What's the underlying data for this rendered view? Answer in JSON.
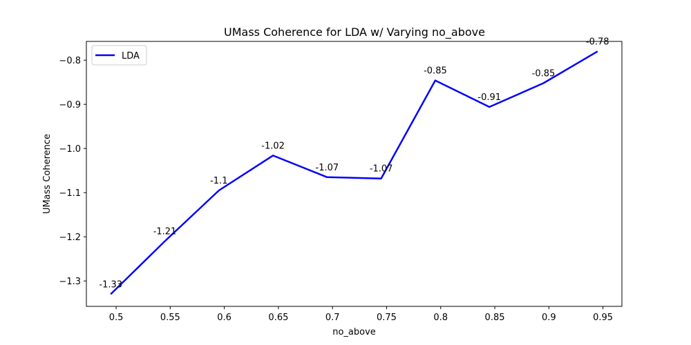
{
  "chart_data": {
    "type": "line",
    "title": "UMass Coherence for LDA w/ Varying no_above",
    "xlabel": "no_above",
    "ylabel": "UMass Coherence",
    "x_ticks": [
      "0.5",
      "0.55",
      "0.6",
      "0.65",
      "0.7",
      "0.75",
      "0.8",
      "0.85",
      "0.9",
      "0.95"
    ],
    "y_ticks": [
      "−1.3",
      "−1.2",
      "−1.1",
      "−1.0",
      "−0.9",
      "−0.8"
    ],
    "x_tick_values": [
      0.5,
      0.55,
      0.6,
      0.65,
      0.7,
      0.75,
      0.8,
      0.85,
      0.9,
      0.95
    ],
    "y_tick_values": [
      -1.3,
      -1.2,
      -1.1,
      -1.0,
      -0.9,
      -0.8
    ],
    "xlim": [
      0.4725,
      0.9675
    ],
    "ylim": [
      -1.3575,
      -0.7575
    ],
    "grid": false,
    "legend_position": "top-left",
    "series": [
      {
        "name": "LDA",
        "color": "#0000ff",
        "x": [
          0.495,
          0.545,
          0.595,
          0.645,
          0.695,
          0.745,
          0.795,
          0.845,
          0.895,
          0.945
        ],
        "values": [
          -1.33,
          -1.21,
          -1.095,
          -1.016,
          -1.065,
          -1.068,
          -0.846,
          -0.906,
          -0.852,
          -0.78
        ],
        "labels": [
          "-1.33",
          "-1.21",
          "-1.1",
          "-1.02",
          "-1.07",
          "-1.07",
          "-0.85",
          "-0.91",
          "-0.85",
          "-0.78"
        ]
      }
    ]
  }
}
